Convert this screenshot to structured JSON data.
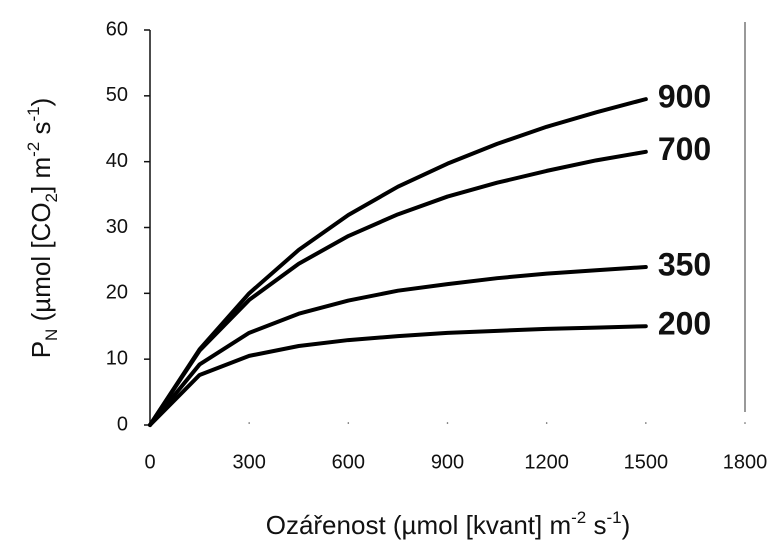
{
  "chart_data": {
    "type": "line",
    "xlabel": [
      "Ozářenost (µmol [kvant] m",
      "-2",
      " s",
      "-1",
      ")"
    ],
    "ylabel": [
      "P",
      "N",
      " (µmol [CO",
      "2",
      "] m",
      "-2",
      " s",
      "-1",
      ")"
    ],
    "x": [
      0,
      150,
      300,
      450,
      600,
      750,
      900,
      1050,
      1200,
      1350,
      1500
    ],
    "series": [
      {
        "name": "900",
        "color": "#000000",
        "values": [
          0,
          11.5,
          20.0,
          26.6,
          31.9,
          36.2,
          39.7,
          42.7,
          45.3,
          47.5,
          49.5
        ]
      },
      {
        "name": "700",
        "color": "#000000",
        "values": [
          0,
          11.3,
          19.0,
          24.5,
          28.7,
          32.0,
          34.7,
          36.8,
          38.6,
          40.2,
          41.5
        ]
      },
      {
        "name": "350",
        "color": "#000000",
        "values": [
          0,
          9.2,
          14.0,
          16.9,
          18.9,
          20.4,
          21.4,
          22.3,
          23.0,
          23.5,
          24.0
        ]
      },
      {
        "name": "200",
        "color": "#000000",
        "values": [
          0,
          7.6,
          10.5,
          12.0,
          12.9,
          13.5,
          14.0,
          14.3,
          14.6,
          14.8,
          15.0
        ]
      }
    ],
    "xlim": [
      0,
      1800
    ],
    "xticks": [
      0,
      300,
      600,
      900,
      1200,
      1500,
      1800
    ],
    "ylim": [
      0,
      60
    ],
    "yticks": [
      0,
      10,
      20,
      30,
      40,
      50,
      60
    ],
    "grid": false
  }
}
